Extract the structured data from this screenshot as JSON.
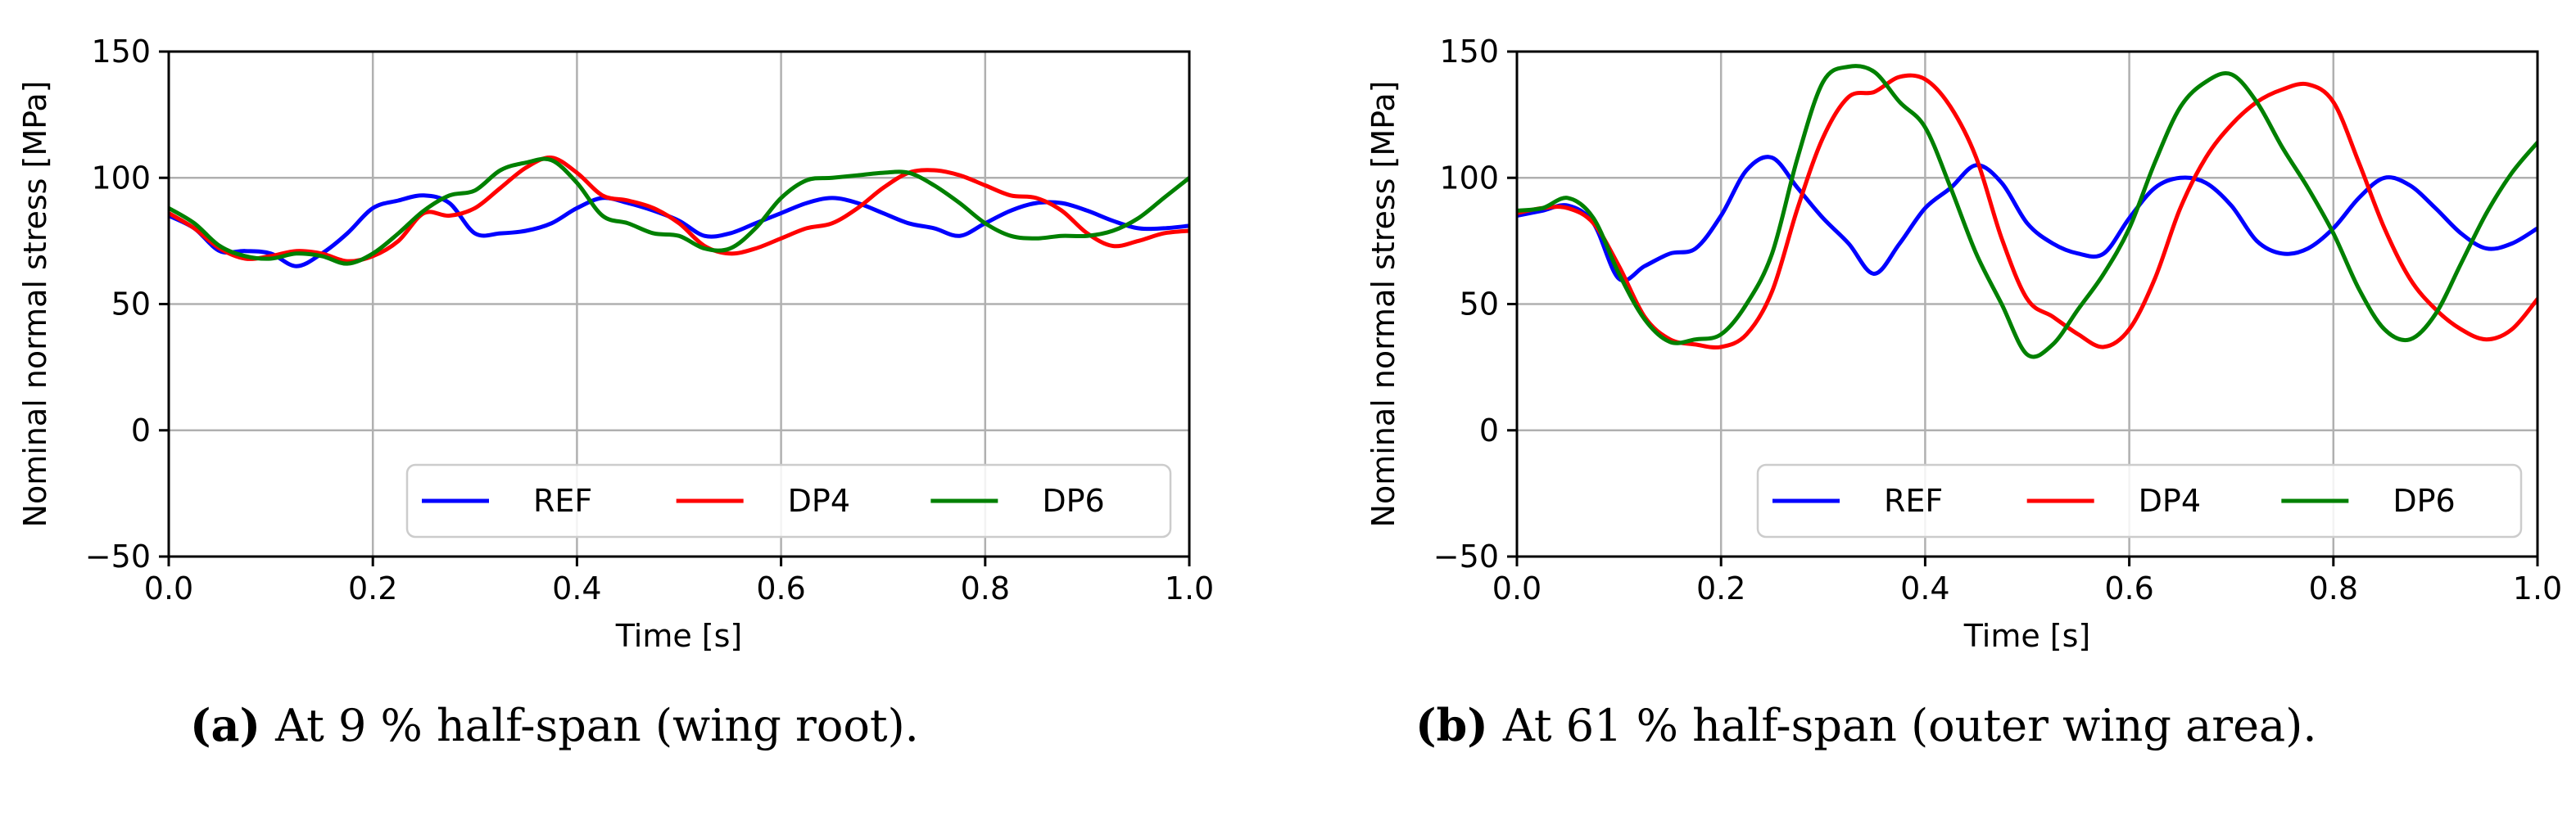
{
  "chart_data": [
    {
      "type": "line",
      "tag": "(a)",
      "caption": "At 9 % half-span (wing root).",
      "xlabel": "Time [s]",
      "ylabel": "Nominal normal stress [MPa]",
      "xlim": [
        0.0,
        1.0
      ],
      "ylim": [
        -50,
        150
      ],
      "xticks": [
        0.0,
        0.2,
        0.4,
        0.6,
        0.8,
        1.0
      ],
      "xtick_labels": [
        "0.0",
        "0.2",
        "0.4",
        "0.6",
        "0.8",
        "1.0"
      ],
      "yticks": [
        -50,
        0,
        50,
        100,
        150
      ],
      "ytick_labels": [
        "−50",
        "0",
        "50",
        "100",
        "150"
      ],
      "grid": true,
      "legend_position": "lower-right",
      "x": [
        0.0,
        0.025,
        0.05,
        0.075,
        0.1,
        0.125,
        0.15,
        0.175,
        0.2,
        0.225,
        0.25,
        0.275,
        0.3,
        0.325,
        0.35,
        0.375,
        0.4,
        0.425,
        0.45,
        0.475,
        0.5,
        0.525,
        0.55,
        0.575,
        0.6,
        0.625,
        0.65,
        0.675,
        0.7,
        0.725,
        0.75,
        0.775,
        0.8,
        0.825,
        0.85,
        0.875,
        0.9,
        0.925,
        0.95,
        0.975,
        1.0
      ],
      "series": [
        {
          "name": "REF",
          "color": "#0000ff",
          "values": [
            85,
            80,
            71,
            71,
            70,
            65,
            70,
            78,
            88,
            91,
            93,
            90,
            78,
            78,
            79,
            82,
            88,
            92,
            90,
            87,
            83,
            77,
            78,
            82,
            86,
            90,
            92,
            90,
            86,
            82,
            80,
            77,
            82,
            87,
            90,
            90,
            87,
            83,
            80,
            80,
            81
          ]
        },
        {
          "name": "DP4",
          "color": "#ff0000",
          "values": [
            86,
            80,
            72,
            68,
            69,
            71,
            70,
            67,
            69,
            75,
            86,
            85,
            88,
            96,
            104,
            108,
            102,
            93,
            91,
            88,
            82,
            73,
            70,
            72,
            76,
            80,
            82,
            88,
            96,
            102,
            103,
            101,
            97,
            93,
            92,
            87,
            78,
            73,
            75,
            78,
            79
          ]
        },
        {
          "name": "DP6",
          "color": "#008000",
          "values": [
            88,
            82,
            73,
            69,
            68,
            70,
            69,
            66,
            70,
            78,
            87,
            93,
            95,
            103,
            106,
            107,
            98,
            85,
            82,
            78,
            77,
            72,
            72,
            80,
            92,
            99,
            100,
            101,
            102,
            102,
            97,
            90,
            82,
            77,
            76,
            77,
            77,
            79,
            84,
            92,
            100
          ]
        }
      ]
    },
    {
      "type": "line",
      "tag": "(b)",
      "caption": "At 61 % half-span (outer wing area).",
      "xlabel": "Time [s]",
      "ylabel": "Nominal normal stress [MPa]",
      "xlim": [
        0.0,
        1.0
      ],
      "ylim": [
        -50,
        150
      ],
      "xticks": [
        0.0,
        0.2,
        0.4,
        0.6,
        0.8,
        1.0
      ],
      "xtick_labels": [
        "0.0",
        "0.2",
        "0.4",
        "0.6",
        "0.8",
        "1.0"
      ],
      "yticks": [
        -50,
        0,
        50,
        100,
        150
      ],
      "ytick_labels": [
        "−50",
        "0",
        "50",
        "100",
        "150"
      ],
      "grid": true,
      "legend_position": "lower-right",
      "x": [
        0.0,
        0.025,
        0.05,
        0.075,
        0.1,
        0.125,
        0.15,
        0.175,
        0.2,
        0.225,
        0.25,
        0.275,
        0.3,
        0.325,
        0.35,
        0.375,
        0.4,
        0.425,
        0.45,
        0.475,
        0.5,
        0.525,
        0.55,
        0.575,
        0.6,
        0.625,
        0.65,
        0.675,
        0.7,
        0.725,
        0.75,
        0.775,
        0.8,
        0.825,
        0.85,
        0.875,
        0.9,
        0.925,
        0.95,
        0.975,
        1.0
      ],
      "series": [
        {
          "name": "REF",
          "color": "#0000ff",
          "values": [
            85,
            87,
            89,
            82,
            60,
            65,
            70,
            72,
            85,
            103,
            108,
            96,
            84,
            74,
            62,
            74,
            88,
            96,
            105,
            98,
            82,
            74,
            70,
            70,
            84,
            96,
            100,
            98,
            89,
            75,
            70,
            72,
            80,
            92,
            100,
            97,
            88,
            78,
            72,
            74,
            80
          ]
        },
        {
          "name": "DP4",
          "color": "#ff0000",
          "values": [
            86,
            88,
            88,
            82,
            65,
            45,
            36,
            34,
            33,
            38,
            55,
            88,
            116,
            132,
            134,
            140,
            139,
            128,
            108,
            76,
            52,
            45,
            38,
            33,
            40,
            60,
            88,
            108,
            121,
            130,
            135,
            137,
            130,
            106,
            80,
            60,
            48,
            40,
            36,
            40,
            52
          ]
        },
        {
          "name": "DP6",
          "color": "#008000",
          "values": [
            87,
            88,
            92,
            84,
            62,
            44,
            35,
            36,
            38,
            50,
            70,
            108,
            138,
            144,
            142,
            130,
            120,
            96,
            70,
            50,
            30,
            34,
            48,
            62,
            80,
            106,
            128,
            138,
            141,
            130,
            112,
            96,
            78,
            56,
            40,
            36,
            46,
            66,
            86,
            102,
            114
          ]
        }
      ]
    }
  ]
}
